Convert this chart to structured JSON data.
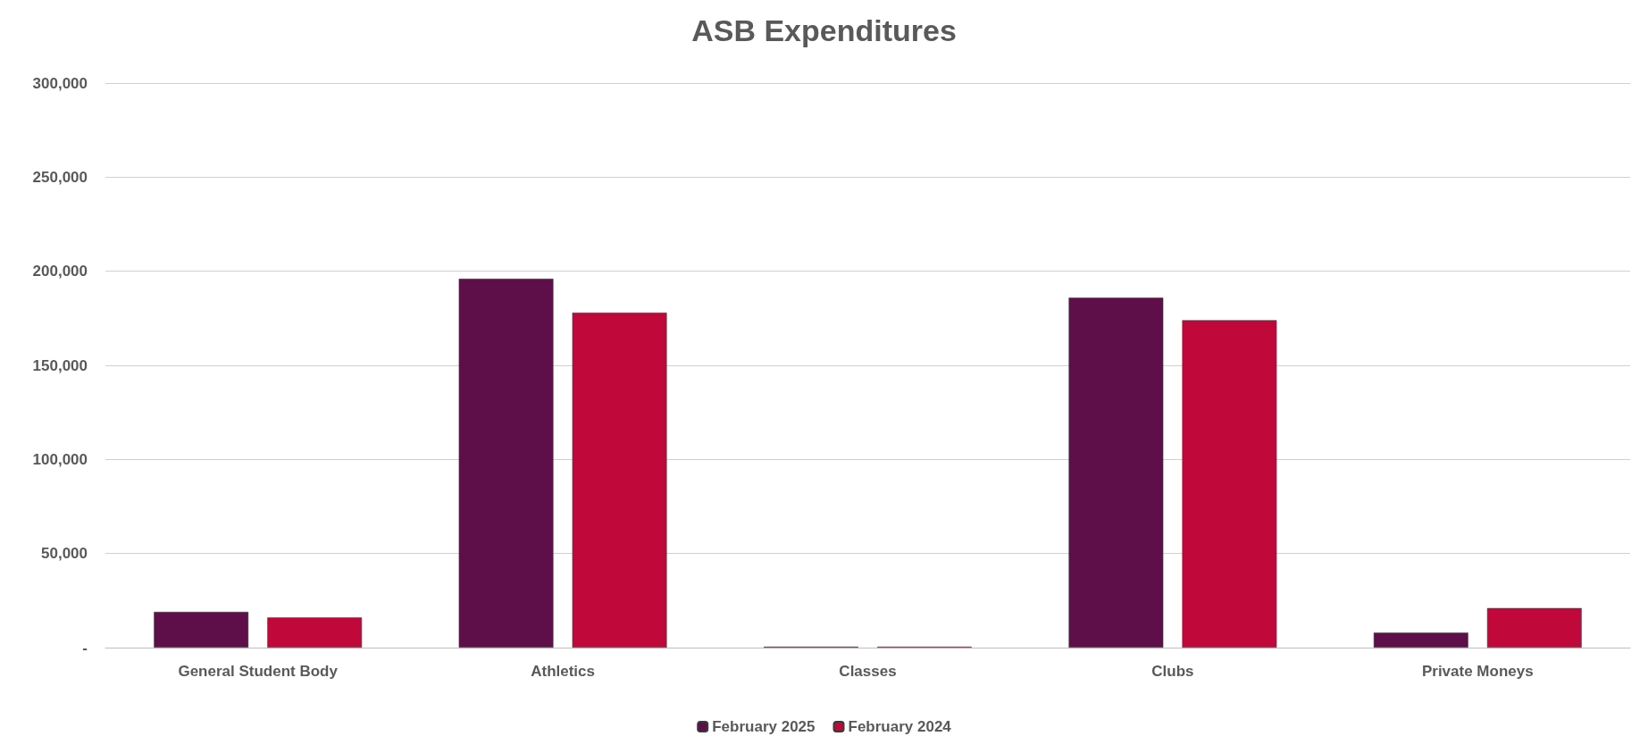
{
  "chart_data": {
    "type": "bar",
    "title": "ASB Expenditures",
    "categories": [
      "General Student Body",
      "Athletics",
      "Classes",
      "Clubs",
      "Private Moneys"
    ],
    "series": [
      {
        "name": "February 2025",
        "color": "#5e0f4a",
        "values": [
          19000,
          196000,
          500,
          186000,
          8000
        ]
      },
      {
        "name": "February 2024",
        "color": "#c0083a",
        "values": [
          16000,
          178000,
          500,
          174000,
          21000
        ]
      }
    ],
    "ylim": [
      0,
      300000
    ],
    "yticks": [
      {
        "value": 0,
        "label": "-"
      },
      {
        "value": 50000,
        "label": "50,000"
      },
      {
        "value": 100000,
        "label": "100,000"
      },
      {
        "value": 150000,
        "label": "150,000"
      },
      {
        "value": 200000,
        "label": "200,000"
      },
      {
        "value": 250000,
        "label": "250,000"
      },
      {
        "value": 300000,
        "label": "300,000"
      }
    ],
    "grid": "y",
    "legend": "bottom"
  }
}
